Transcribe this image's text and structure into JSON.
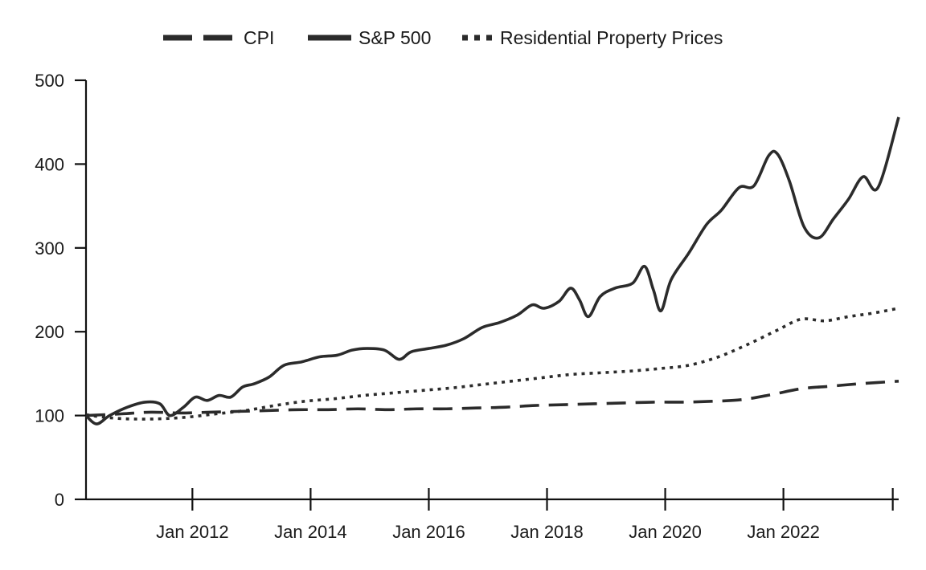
{
  "chart_data": {
    "type": "line",
    "title": "",
    "xlabel": "",
    "ylabel": "",
    "xlim": [
      2010.2,
      2023.95
    ],
    "ylim": [
      0,
      500
    ],
    "yticks": [
      0,
      100,
      200,
      300,
      400,
      500
    ],
    "xticks": [
      {
        "value": 2012,
        "label": "Jan 2012"
      },
      {
        "value": 2014,
        "label": "Jan 2014"
      },
      {
        "value": 2016,
        "label": "Jan 2016"
      },
      {
        "value": 2018,
        "label": "Jan 2018"
      },
      {
        "value": 2020,
        "label": "Jan 2020"
      },
      {
        "value": 2022,
        "label": "Jan 2022"
      },
      {
        "value": 2023.85,
        "label": ""
      }
    ],
    "legend_position": "top-center",
    "series": [
      {
        "name": "CPI",
        "style": "dashed",
        "color": "#2b2b2b",
        "points": [
          [
            2010.2,
            100
          ],
          [
            2010.8,
            102
          ],
          [
            2011.3,
            104
          ],
          [
            2011.8,
            103
          ],
          [
            2012.3,
            104
          ],
          [
            2012.8,
            105
          ],
          [
            2013.3,
            106
          ],
          [
            2013.8,
            107
          ],
          [
            2014.3,
            107
          ],
          [
            2014.8,
            108
          ],
          [
            2015.3,
            107
          ],
          [
            2015.8,
            108
          ],
          [
            2016.3,
            108
          ],
          [
            2016.8,
            109
          ],
          [
            2017.3,
            110
          ],
          [
            2017.8,
            112
          ],
          [
            2018.3,
            113
          ],
          [
            2018.8,
            114
          ],
          [
            2019.3,
            115
          ],
          [
            2019.8,
            116
          ],
          [
            2020.3,
            116
          ],
          [
            2020.8,
            117
          ],
          [
            2021.3,
            119
          ],
          [
            2021.8,
            125
          ],
          [
            2022.3,
            132
          ],
          [
            2022.8,
            135
          ],
          [
            2023.3,
            138
          ],
          [
            2023.95,
            141
          ]
        ]
      },
      {
        "name": "S&P 500",
        "style": "solid",
        "color": "#2b2b2b",
        "points": [
          [
            2010.2,
            100
          ],
          [
            2010.38,
            90
          ],
          [
            2010.6,
            100
          ],
          [
            2010.9,
            110
          ],
          [
            2011.2,
            116
          ],
          [
            2011.45,
            114
          ],
          [
            2011.62,
            100
          ],
          [
            2011.85,
            110
          ],
          [
            2012.05,
            122
          ],
          [
            2012.25,
            118
          ],
          [
            2012.45,
            124
          ],
          [
            2012.65,
            122
          ],
          [
            2012.85,
            134
          ],
          [
            2013.05,
            138
          ],
          [
            2013.3,
            146
          ],
          [
            2013.55,
            160
          ],
          [
            2013.85,
            164
          ],
          [
            2014.15,
            170
          ],
          [
            2014.45,
            172
          ],
          [
            2014.7,
            178
          ],
          [
            2014.95,
            180
          ],
          [
            2015.25,
            178
          ],
          [
            2015.5,
            167
          ],
          [
            2015.7,
            176
          ],
          [
            2016.0,
            180
          ],
          [
            2016.3,
            184
          ],
          [
            2016.6,
            192
          ],
          [
            2016.9,
            205
          ],
          [
            2017.2,
            211
          ],
          [
            2017.5,
            220
          ],
          [
            2017.75,
            232
          ],
          [
            2017.95,
            228
          ],
          [
            2018.2,
            236
          ],
          [
            2018.4,
            252
          ],
          [
            2018.55,
            238
          ],
          [
            2018.7,
            218
          ],
          [
            2018.9,
            242
          ],
          [
            2019.15,
            252
          ],
          [
            2019.45,
            258
          ],
          [
            2019.65,
            278
          ],
          [
            2019.8,
            250
          ],
          [
            2019.93,
            225
          ],
          [
            2020.1,
            262
          ],
          [
            2020.4,
            294
          ],
          [
            2020.7,
            328
          ],
          [
            2020.95,
            345
          ],
          [
            2021.25,
            372
          ],
          [
            2021.5,
            374
          ],
          [
            2021.75,
            410
          ],
          [
            2021.9,
            412
          ],
          [
            2022.1,
            380
          ],
          [
            2022.35,
            325
          ],
          [
            2022.6,
            312
          ],
          [
            2022.85,
            335
          ],
          [
            2023.1,
            358
          ],
          [
            2023.35,
            385
          ],
          [
            2023.6,
            372
          ],
          [
            2023.95,
            456
          ]
        ]
      },
      {
        "name": "Residential Property Prices",
        "style": "dotted",
        "color": "#2b2b2b",
        "points": [
          [
            2010.2,
            101
          ],
          [
            2010.5,
            98
          ],
          [
            2010.9,
            96
          ],
          [
            2011.4,
            96
          ],
          [
            2011.9,
            98
          ],
          [
            2012.4,
            102
          ],
          [
            2012.9,
            106
          ],
          [
            2013.4,
            112
          ],
          [
            2013.9,
            117
          ],
          [
            2014.4,
            120
          ],
          [
            2014.9,
            124
          ],
          [
            2015.4,
            127
          ],
          [
            2015.9,
            130
          ],
          [
            2016.4,
            133
          ],
          [
            2016.9,
            137
          ],
          [
            2017.4,
            141
          ],
          [
            2017.9,
            145
          ],
          [
            2018.4,
            149
          ],
          [
            2018.9,
            151
          ],
          [
            2019.4,
            153
          ],
          [
            2019.9,
            156
          ],
          [
            2020.4,
            160
          ],
          [
            2020.9,
            170
          ],
          [
            2021.4,
            185
          ],
          [
            2021.9,
            202
          ],
          [
            2022.3,
            215
          ],
          [
            2022.7,
            213
          ],
          [
            2023.1,
            218
          ],
          [
            2023.5,
            222
          ],
          [
            2023.95,
            228
          ]
        ]
      }
    ]
  }
}
